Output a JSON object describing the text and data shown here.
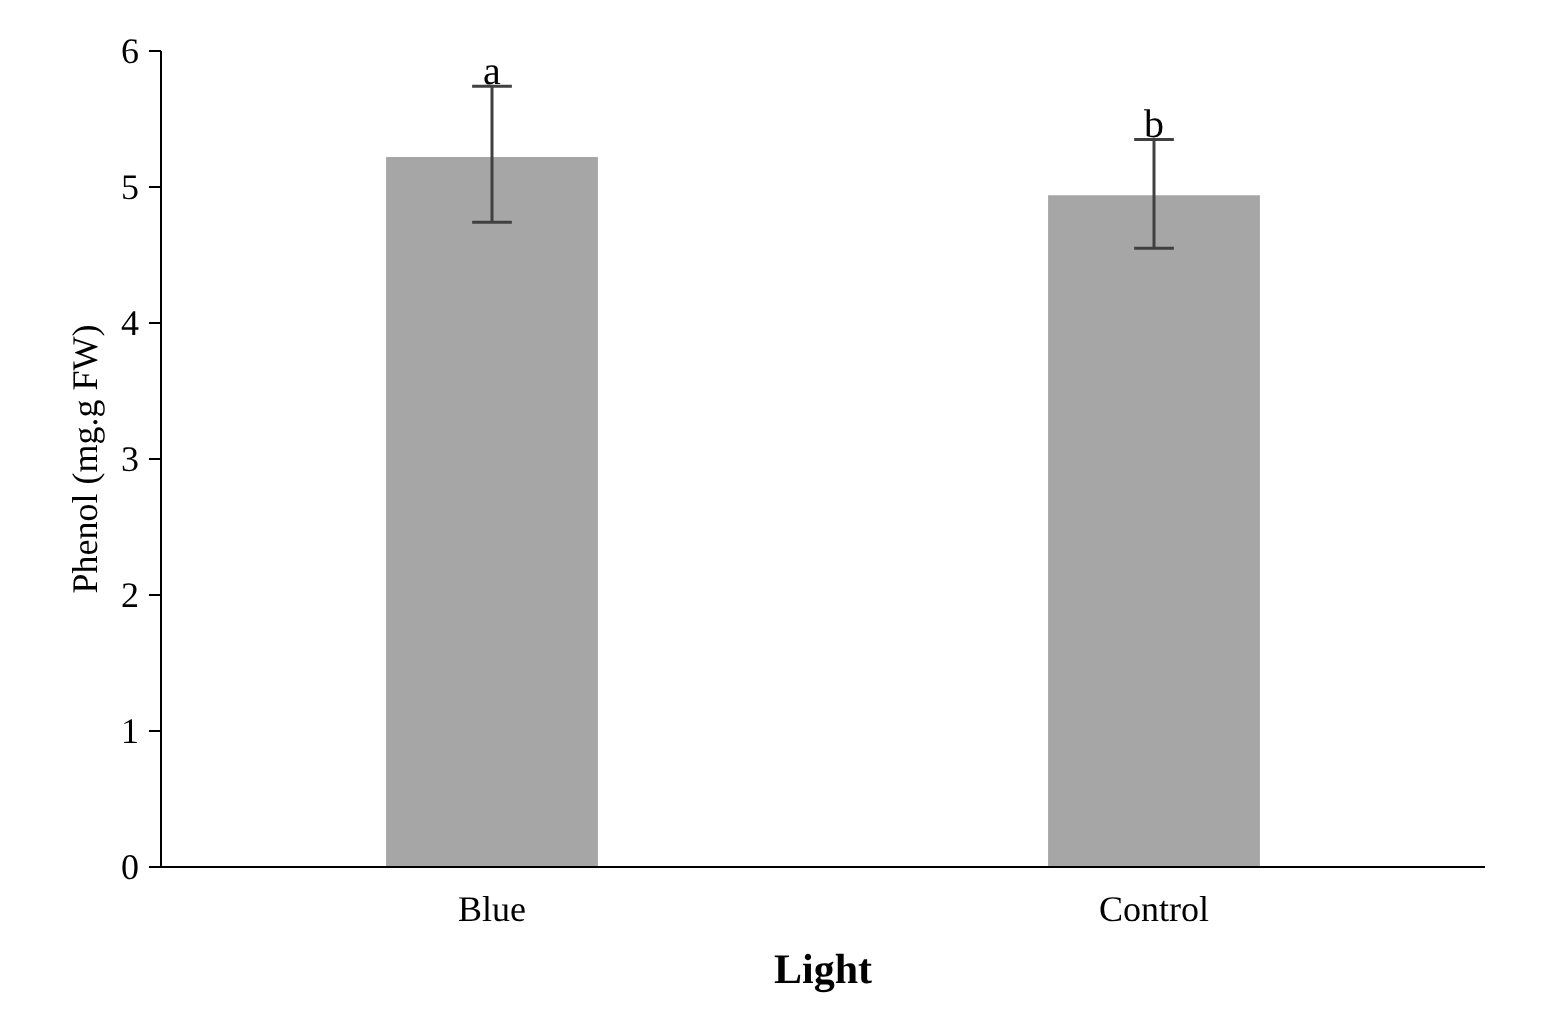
{
  "chart_data": {
    "type": "bar",
    "xlabel": "Light",
    "ylabel": "Phenol (mg.g FW)",
    "categories": [
      "Blue",
      "Control"
    ],
    "values": [
      5.22,
      4.94
    ],
    "errors": [
      [
        4.74,
        5.74
      ],
      [
        4.55,
        5.35
      ]
    ],
    "color": "#a6a6a6",
    "ylim": [
      0,
      6
    ],
    "yticks": [
      0,
      1,
      2,
      3,
      4,
      5,
      6
    ],
    "grid": false,
    "annotations": [
      "a",
      "b"
    ]
  }
}
